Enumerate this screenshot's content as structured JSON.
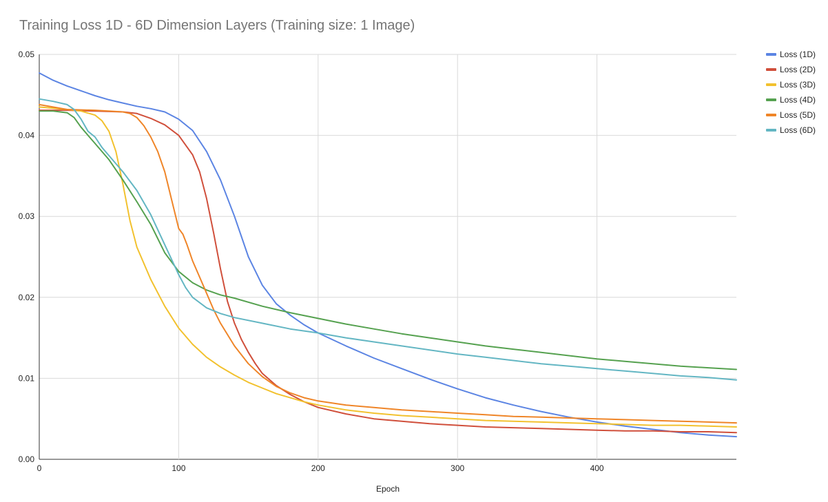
{
  "chart_data": {
    "type": "line",
    "title": "Training Loss 1D - 6D Dimension Layers (Training size: 1 Image)",
    "xlabel": "Epoch",
    "ylabel": "",
    "xlim": [
      0,
      500
    ],
    "ylim": [
      0,
      0.05
    ],
    "x_ticks": [
      0,
      100,
      200,
      300,
      400
    ],
    "x_tick_labels": [
      "0",
      "100",
      "200",
      "300",
      "400"
    ],
    "y_ticks": [
      0,
      0.01,
      0.02,
      0.03,
      0.04,
      0.05
    ],
    "y_tick_labels": [
      "0.00",
      "0.01",
      "0.02",
      "0.03",
      "0.04",
      "0.05"
    ],
    "grid": true,
    "legend_position": "right",
    "series": [
      {
        "name": "Loss (1D)",
        "color": "#5b84e3",
        "x": [
          0,
          10,
          20,
          30,
          40,
          50,
          60,
          70,
          80,
          90,
          100,
          110,
          120,
          130,
          140,
          150,
          160,
          170,
          180,
          190,
          200,
          220,
          240,
          260,
          280,
          300,
          320,
          340,
          360,
          380,
          400,
          420,
          440,
          460,
          480,
          500
        ],
        "y": [
          0.0477,
          0.0468,
          0.0461,
          0.0455,
          0.0449,
          0.0444,
          0.044,
          0.0436,
          0.0433,
          0.0429,
          0.042,
          0.0406,
          0.038,
          0.0345,
          0.03,
          0.025,
          0.0215,
          0.0192,
          0.0178,
          0.0166,
          0.0156,
          0.014,
          0.0125,
          0.0112,
          0.0099,
          0.0087,
          0.0076,
          0.0067,
          0.0059,
          0.0052,
          0.0046,
          0.0041,
          0.0037,
          0.0033,
          0.003,
          0.0028
        ]
      },
      {
        "name": "Loss (2D)",
        "color": "#d04f3b",
        "x": [
          0,
          20,
          40,
          60,
          70,
          80,
          90,
          100,
          110,
          115,
          120,
          125,
          130,
          135,
          140,
          145,
          150,
          155,
          160,
          170,
          180,
          190,
          200,
          220,
          240,
          260,
          280,
          300,
          320,
          340,
          360,
          380,
          400,
          420,
          440,
          460,
          480,
          500
        ],
        "y": [
          0.0431,
          0.0431,
          0.043,
          0.0429,
          0.0427,
          0.0421,
          0.0413,
          0.04,
          0.0376,
          0.0355,
          0.0322,
          0.028,
          0.0235,
          0.0195,
          0.0168,
          0.0148,
          0.0132,
          0.0118,
          0.0106,
          0.0091,
          0.008,
          0.0071,
          0.0064,
          0.0056,
          0.005,
          0.0047,
          0.0044,
          0.0042,
          0.004,
          0.0039,
          0.0038,
          0.0037,
          0.0036,
          0.0035,
          0.0035,
          0.0034,
          0.0034,
          0.0033
        ]
      },
      {
        "name": "Loss (3D)",
        "color": "#f2c12e",
        "x": [
          0,
          20,
          30,
          40,
          45,
          50,
          55,
          60,
          65,
          70,
          80,
          90,
          100,
          110,
          120,
          130,
          140,
          150,
          160,
          170,
          180,
          190,
          200,
          220,
          240,
          260,
          280,
          300,
          320,
          340,
          360,
          380,
          400,
          420,
          440,
          460,
          480,
          500
        ],
        "y": [
          0.0435,
          0.0432,
          0.043,
          0.0425,
          0.0418,
          0.0405,
          0.038,
          0.034,
          0.0295,
          0.0262,
          0.0222,
          0.0189,
          0.0162,
          0.0142,
          0.0126,
          0.0114,
          0.0104,
          0.0095,
          0.0088,
          0.0081,
          0.0076,
          0.0071,
          0.0067,
          0.0061,
          0.0057,
          0.0054,
          0.0052,
          0.005,
          0.0048,
          0.0047,
          0.0046,
          0.0045,
          0.0044,
          0.0043,
          0.0042,
          0.0042,
          0.0041,
          0.004
        ]
      },
      {
        "name": "Loss (4D)",
        "color": "#55a14f",
        "x": [
          0,
          10,
          20,
          25,
          30,
          35,
          40,
          50,
          60,
          70,
          80,
          90,
          100,
          110,
          120,
          130,
          140,
          160,
          180,
          200,
          220,
          240,
          260,
          280,
          300,
          320,
          340,
          360,
          380,
          400,
          420,
          440,
          460,
          480,
          500
        ],
        "y": [
          0.043,
          0.043,
          0.0428,
          0.0422,
          0.041,
          0.04,
          0.039,
          0.037,
          0.0345,
          0.0318,
          0.029,
          0.0255,
          0.0232,
          0.0218,
          0.0209,
          0.0203,
          0.0199,
          0.0189,
          0.0181,
          0.0174,
          0.0167,
          0.0161,
          0.0155,
          0.015,
          0.0145,
          0.014,
          0.0136,
          0.0132,
          0.0128,
          0.0124,
          0.0121,
          0.0118,
          0.0115,
          0.0113,
          0.0111
        ]
      },
      {
        "name": "Loss (5D)",
        "color": "#ef8528",
        "x": [
          0,
          20,
          40,
          60,
          65,
          70,
          75,
          80,
          85,
          90,
          95,
          100,
          103,
          106,
          110,
          115,
          120,
          125,
          130,
          140,
          150,
          160,
          170,
          180,
          190,
          200,
          220,
          240,
          260,
          280,
          300,
          320,
          340,
          360,
          380,
          400,
          420,
          440,
          460,
          480,
          500
        ],
        "y": [
          0.0438,
          0.0432,
          0.0431,
          0.0429,
          0.0427,
          0.0422,
          0.0412,
          0.0398,
          0.038,
          0.0355,
          0.032,
          0.0285,
          0.0278,
          0.0265,
          0.0245,
          0.0225,
          0.0205,
          0.0185,
          0.0168,
          0.014,
          0.0118,
          0.0102,
          0.009,
          0.0082,
          0.0076,
          0.0072,
          0.0067,
          0.0064,
          0.0061,
          0.0059,
          0.0057,
          0.0055,
          0.0053,
          0.0052,
          0.0051,
          0.005,
          0.0049,
          0.0048,
          0.0047,
          0.0046,
          0.0045
        ]
      },
      {
        "name": "Loss (6D)",
        "color": "#63b6c3",
        "x": [
          0,
          10,
          20,
          25,
          30,
          35,
          40,
          45,
          50,
          60,
          70,
          80,
          90,
          100,
          105,
          110,
          120,
          130,
          140,
          160,
          180,
          200,
          220,
          240,
          260,
          280,
          300,
          320,
          340,
          360,
          380,
          400,
          420,
          440,
          460,
          480,
          500
        ],
        "y": [
          0.0445,
          0.0442,
          0.0438,
          0.0432,
          0.042,
          0.0405,
          0.0398,
          0.0385,
          0.0375,
          0.0355,
          0.0332,
          0.0302,
          0.0265,
          0.0228,
          0.0212,
          0.02,
          0.0187,
          0.018,
          0.0175,
          0.0168,
          0.0161,
          0.0156,
          0.015,
          0.0145,
          0.014,
          0.0135,
          0.013,
          0.0126,
          0.0122,
          0.0118,
          0.0115,
          0.0112,
          0.0109,
          0.0106,
          0.0103,
          0.0101,
          0.0098
        ]
      }
    ]
  }
}
